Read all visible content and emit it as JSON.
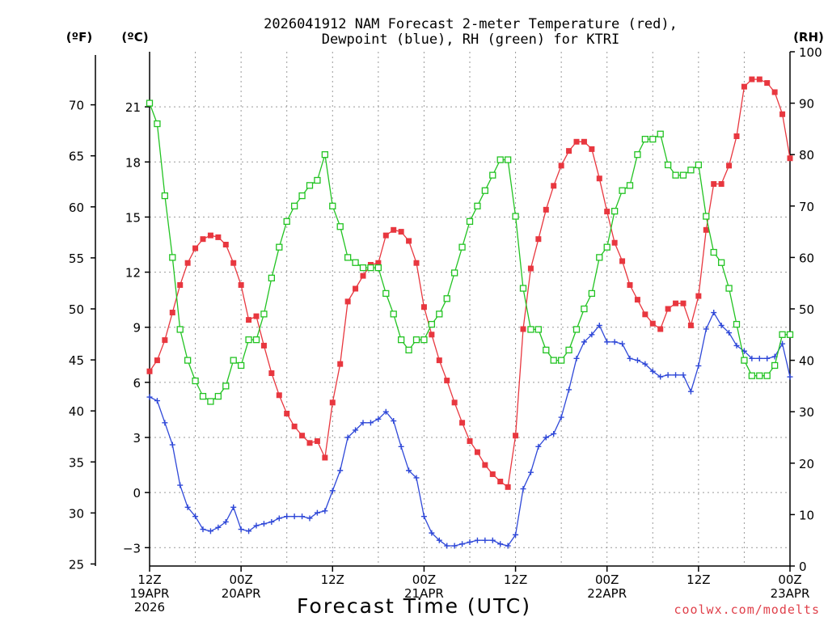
{
  "chart_data": {
    "type": "line",
    "title_line1": "2026041912 NAM Forecast 2-meter Temperature (red),",
    "title_line2": "Dewpoint (blue), RH (green) for KTRI",
    "xlabel": "Forecast Time (UTC)",
    "credit": "coolwx.com/modelts",
    "units": {
      "fahrenheit": "(ºF)",
      "celsius": "(ºC)",
      "rh": "(RH)"
    },
    "celsius_axis": {
      "range": [
        -4,
        24
      ],
      "ticks": [
        -3,
        0,
        3,
        6,
        9,
        12,
        15,
        18,
        21
      ]
    },
    "fahrenheit_axis": {
      "range": [
        24.8,
        75.2
      ],
      "ticks": [
        25,
        30,
        35,
        40,
        45,
        50,
        55,
        60,
        65,
        70
      ]
    },
    "rh_axis": {
      "range": [
        0,
        100
      ],
      "ticks": [
        0,
        10,
        20,
        30,
        40,
        50,
        60,
        70,
        80,
        90,
        100
      ]
    },
    "x_range_hours": [
      0,
      84
    ],
    "x_ticks": [
      {
        "hour": 0,
        "lines": [
          "12Z",
          "19APR",
          "2026"
        ]
      },
      {
        "hour": 12,
        "lines": [
          "00Z",
          "20APR"
        ]
      },
      {
        "hour": 24,
        "lines": [
          "12Z"
        ]
      },
      {
        "hour": 36,
        "lines": [
          "00Z",
          "21APR"
        ]
      },
      {
        "hour": 48,
        "lines": [
          "12Z"
        ]
      },
      {
        "hour": 60,
        "lines": [
          "00Z",
          "22APR"
        ]
      },
      {
        "hour": 72,
        "lines": [
          "12Z"
        ]
      },
      {
        "hour": 84,
        "lines": [
          "00Z",
          "23APR"
        ]
      }
    ],
    "series": [
      {
        "name": "2-meter Temperature",
        "color": "#e8373f",
        "axis": "celsius",
        "marker": "filled-square",
        "values": [
          6.6,
          7.2,
          8.3,
          9.8,
          11.3,
          12.5,
          13.3,
          13.8,
          14.0,
          13.9,
          13.5,
          12.5,
          11.3,
          9.4,
          9.6,
          8.0,
          6.5,
          5.3,
          4.3,
          3.6,
          3.1,
          2.7,
          2.8,
          1.9,
          4.9,
          7.0,
          10.4,
          11.1,
          11.8,
          12.4,
          12.5,
          14.0,
          14.3,
          14.2,
          13.7,
          12.5,
          10.1,
          8.6,
          7.2,
          6.1,
          4.9,
          3.8,
          2.8,
          2.2,
          1.5,
          1.0,
          0.6,
          0.3,
          3.1,
          8.9,
          12.2,
          13.8,
          15.4,
          16.7,
          17.8,
          18.6,
          19.1,
          19.1,
          18.7,
          17.1,
          15.3,
          13.6,
          12.6,
          11.3,
          10.5,
          9.7,
          9.2,
          8.9,
          10.0,
          10.3,
          10.3,
          9.1,
          10.7,
          14.3,
          16.8,
          16.8,
          17.8,
          19.4,
          22.1,
          22.5,
          22.5,
          22.3,
          21.8,
          20.6,
          18.2
        ],
        "value_labels": []
      },
      {
        "name": "Dewpoint",
        "color": "#2f48d8",
        "axis": "celsius",
        "marker": "plus",
        "values": [
          5.2,
          5.0,
          3.8,
          2.6,
          0.4,
          -0.8,
          -1.3,
          -2.0,
          -2.1,
          -1.9,
          -1.6,
          -0.8,
          -2.0,
          -2.1,
          -1.8,
          -1.7,
          -1.6,
          -1.4,
          -1.3,
          -1.3,
          -1.3,
          -1.4,
          -1.1,
          -1.0,
          0.1,
          1.2,
          3.0,
          3.4,
          3.8,
          3.8,
          4.0,
          4.4,
          3.9,
          2.5,
          1.2,
          0.8,
          -1.3,
          -2.2,
          -2.6,
          -2.9,
          -2.9,
          -2.8,
          -2.7,
          -2.6,
          -2.6,
          -2.6,
          -2.8,
          -2.9,
          -2.3,
          0.2,
          1.1,
          2.5,
          3.0,
          3.2,
          4.1,
          5.6,
          7.3,
          8.2,
          8.6,
          9.1,
          8.2,
          8.2,
          8.1,
          7.3,
          7.2,
          7.0,
          6.6,
          6.3,
          6.4,
          6.4,
          6.4,
          5.5,
          6.9,
          8.9,
          9.8,
          9.1,
          8.7,
          8.0,
          7.7,
          7.3,
          7.3,
          7.3,
          7.4,
          8.1,
          6.3
        ],
        "value_labels": []
      },
      {
        "name": "RH",
        "color": "#22c322",
        "axis": "rh",
        "marker": "open-square",
        "values": [
          90,
          86,
          72,
          60,
          46,
          40,
          36,
          33,
          32,
          33,
          35,
          40,
          39,
          44,
          44,
          49,
          56,
          62,
          67,
          70,
          72,
          74,
          75,
          80,
          70,
          66,
          60,
          59,
          58,
          58,
          58,
          53,
          49,
          44,
          42,
          44,
          44,
          47,
          49,
          52,
          57,
          62,
          67,
          70,
          73,
          76,
          79,
          79,
          68,
          54,
          46,
          46,
          42,
          40,
          40,
          42,
          46,
          50,
          53,
          60,
          62,
          69,
          73,
          74,
          80,
          83,
          83,
          84,
          78,
          76,
          76,
          77,
          78,
          68,
          61,
          59,
          54,
          47,
          40,
          37,
          37,
          37,
          39,
          45,
          45
        ],
        "value_labels": []
      }
    ]
  }
}
